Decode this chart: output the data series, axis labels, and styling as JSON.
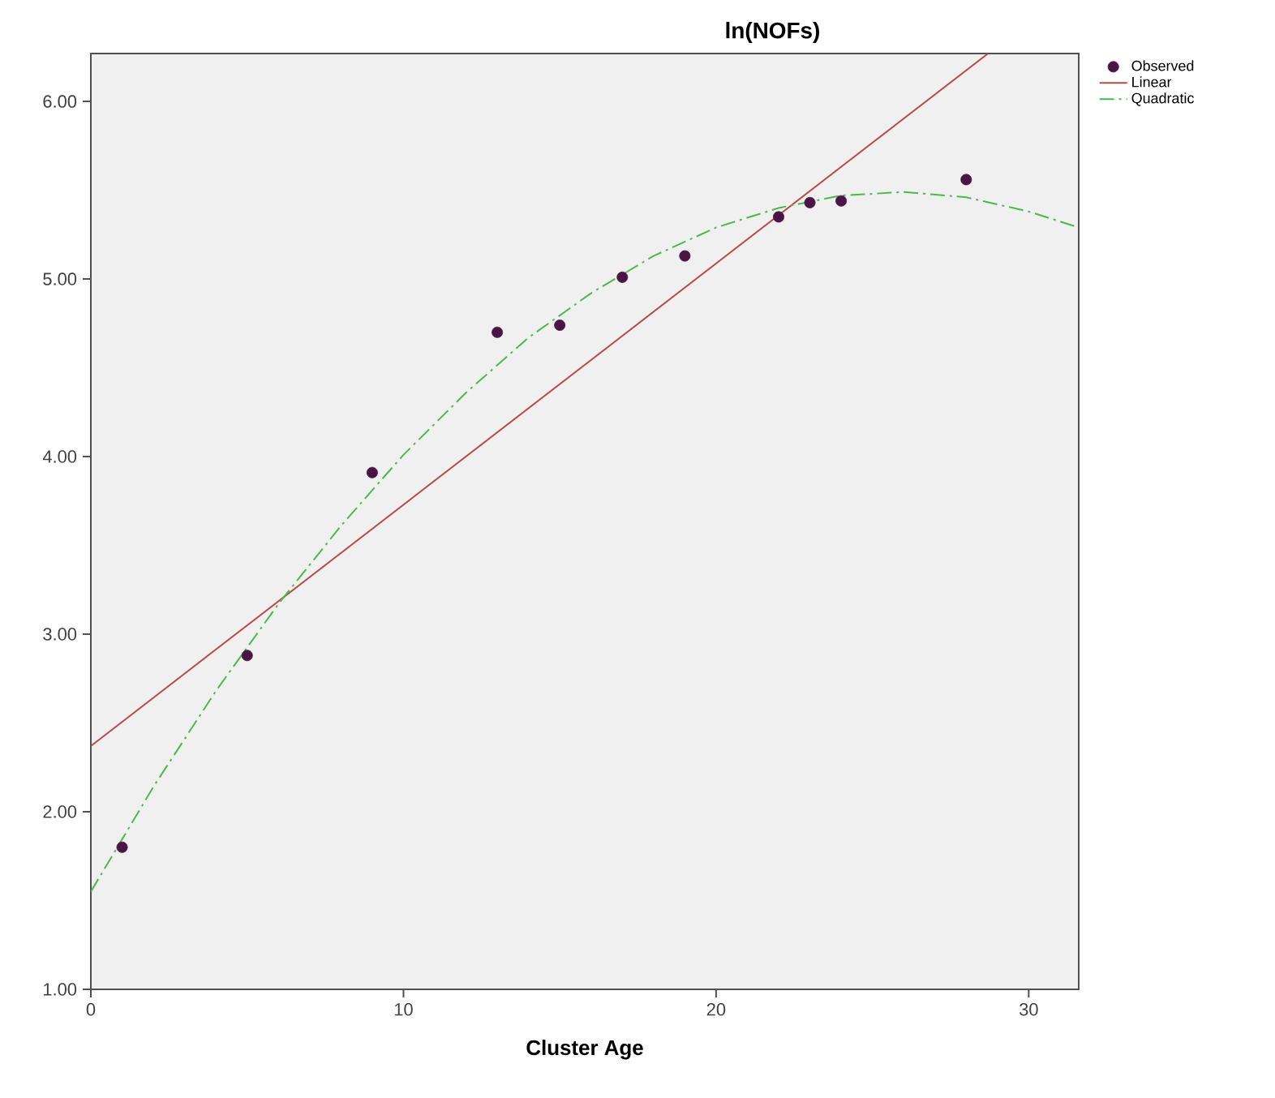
{
  "chart_data": {
    "type": "scatter",
    "title": "ln(NOFs)",
    "xlabel": "Cluster Age",
    "xlim": [
      0,
      31.6
    ],
    "ylim": [
      1,
      6.27
    ],
    "xticks": [
      0,
      10,
      20,
      30
    ],
    "yticks": [
      {
        "value": 1,
        "label": "1.00"
      },
      {
        "value": 2,
        "label": "2.00"
      },
      {
        "value": 3,
        "label": "3.00"
      },
      {
        "value": 4,
        "label": "4.00"
      },
      {
        "value": 5,
        "label": "5.00"
      },
      {
        "value": 6,
        "label": "6.00"
      }
    ],
    "legend": "top right",
    "grid": false,
    "series": [
      {
        "name": "Observed",
        "marker": "circle",
        "color": "#4a1444",
        "x": [
          1,
          5,
          9,
          13,
          15,
          17,
          19,
          22,
          23,
          24,
          28
        ],
        "values": [
          1.8,
          2.88,
          3.91,
          4.7,
          4.74,
          5.01,
          5.13,
          5.35,
          5.43,
          5.44,
          5.56
        ]
      },
      {
        "name": "Linear",
        "type": "line",
        "marker": "none",
        "line_style": "solid",
        "color": "#b84a48",
        "x": [
          0,
          28.7
        ],
        "values": [
          2.37,
          6.27
        ]
      },
      {
        "name": "Quadratic",
        "type": "line",
        "marker": "none",
        "line_style": "dashdot",
        "color": "#4cb84c",
        "x": [
          0,
          2,
          4,
          6,
          8,
          10,
          12,
          14,
          16,
          18,
          20,
          22,
          24,
          26,
          28,
          30,
          31.6
        ],
        "values": [
          1.55,
          2.14,
          2.68,
          3.17,
          3.61,
          4.01,
          4.36,
          4.67,
          4.92,
          5.13,
          5.29,
          5.4,
          5.47,
          5.49,
          5.46,
          5.38,
          5.29
        ]
      }
    ]
  }
}
